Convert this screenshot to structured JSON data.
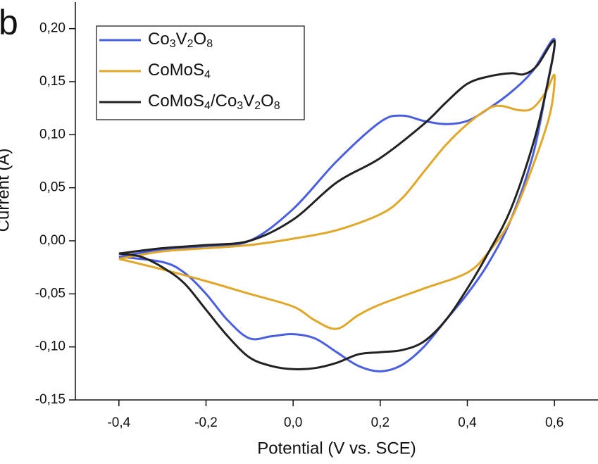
{
  "chart_data": {
    "type": "line",
    "panel_label": "b",
    "xlabel": "Potential (V vs. SCE)",
    "ylabel": "Current (A)",
    "xlim": [
      -0.5,
      0.7
    ],
    "ylim": [
      -0.15,
      0.225
    ],
    "xticks": [
      {
        "value": -0.4,
        "label": "-0,4"
      },
      {
        "value": -0.2,
        "label": "-0,2"
      },
      {
        "value": 0,
        "label": "0,0"
      },
      {
        "value": 0.2,
        "label": "0,2"
      },
      {
        "value": 0.4,
        "label": "0,4"
      },
      {
        "value": 0.6,
        "label": "0,6"
      }
    ],
    "yticks": [
      {
        "value": -0.15,
        "label": "-0,15"
      },
      {
        "value": -0.1,
        "label": "-0,10"
      },
      {
        "value": -0.05,
        "label": "-0,05"
      },
      {
        "value": 0,
        "label": "0,00"
      },
      {
        "value": 0.05,
        "label": "0,05"
      },
      {
        "value": 0.1,
        "label": "0,10"
      },
      {
        "value": 0.15,
        "label": "0,15"
      },
      {
        "value": 0.2,
        "label": "0,20"
      }
    ],
    "legend": "upper left",
    "series": [
      {
        "name": "Co3V2O8",
        "color": "#4a5fe0",
        "x": [
          -0.4,
          -0.3,
          -0.2,
          -0.1,
          0.0,
          0.1,
          0.2,
          0.25,
          0.3,
          0.35,
          0.4,
          0.45,
          0.5,
          0.55,
          0.6,
          0.58,
          0.55,
          0.5,
          0.45,
          0.4,
          0.35,
          0.3,
          0.25,
          0.2,
          0.15,
          0.1,
          0.05,
          0.0,
          -0.05,
          -0.1,
          -0.15,
          -0.2,
          -0.25,
          -0.3,
          -0.4
        ],
        "values": [
          -0.015,
          -0.008,
          -0.005,
          0.0,
          0.03,
          0.075,
          0.112,
          0.118,
          0.113,
          0.11,
          0.113,
          0.125,
          0.14,
          0.16,
          0.19,
          0.14,
          0.08,
          0.02,
          -0.02,
          -0.05,
          -0.075,
          -0.1,
          -0.117,
          -0.123,
          -0.118,
          -0.105,
          -0.092,
          -0.088,
          -0.09,
          -0.092,
          -0.075,
          -0.05,
          -0.03,
          -0.02,
          -0.015
        ]
      },
      {
        "name": "CoMoS4",
        "color": "#e0a728",
        "x": [
          -0.4,
          -0.3,
          -0.2,
          -0.1,
          0.0,
          0.1,
          0.2,
          0.25,
          0.3,
          0.35,
          0.4,
          0.45,
          0.48,
          0.52,
          0.55,
          0.58,
          0.6,
          0.59,
          0.55,
          0.5,
          0.45,
          0.4,
          0.3,
          0.2,
          0.15,
          0.1,
          0.05,
          0.0,
          -0.1,
          -0.2,
          -0.3,
          -0.4
        ],
        "values": [
          -0.017,
          -0.01,
          -0.007,
          -0.004,
          0.002,
          0.01,
          0.025,
          0.04,
          0.065,
          0.09,
          0.11,
          0.125,
          0.127,
          0.123,
          0.125,
          0.14,
          0.156,
          0.12,
          0.07,
          0.02,
          -0.01,
          -0.03,
          -0.045,
          -0.06,
          -0.07,
          -0.083,
          -0.075,
          -0.062,
          -0.05,
          -0.038,
          -0.027,
          -0.017
        ]
      },
      {
        "name": "CoMoS4/Co3V2O8",
        "color": "#222222",
        "x": [
          -0.4,
          -0.3,
          -0.2,
          -0.1,
          0.0,
          0.1,
          0.2,
          0.3,
          0.35,
          0.4,
          0.45,
          0.5,
          0.53,
          0.56,
          0.6,
          0.58,
          0.55,
          0.5,
          0.45,
          0.4,
          0.35,
          0.3,
          0.25,
          0.2,
          0.15,
          0.1,
          0.05,
          0.0,
          -0.05,
          -0.1,
          -0.15,
          -0.2,
          -0.25,
          -0.3,
          -0.35,
          -0.4
        ],
        "values": [
          -0.012,
          -0.007,
          -0.004,
          0.0,
          0.02,
          0.055,
          0.078,
          0.11,
          0.13,
          0.148,
          0.155,
          0.158,
          0.157,
          0.165,
          0.188,
          0.14,
          0.09,
          0.03,
          -0.01,
          -0.045,
          -0.075,
          -0.095,
          -0.103,
          -0.105,
          -0.107,
          -0.115,
          -0.12,
          -0.121,
          -0.118,
          -0.11,
          -0.09,
          -0.065,
          -0.04,
          -0.025,
          -0.015,
          -0.012
        ]
      }
    ]
  }
}
